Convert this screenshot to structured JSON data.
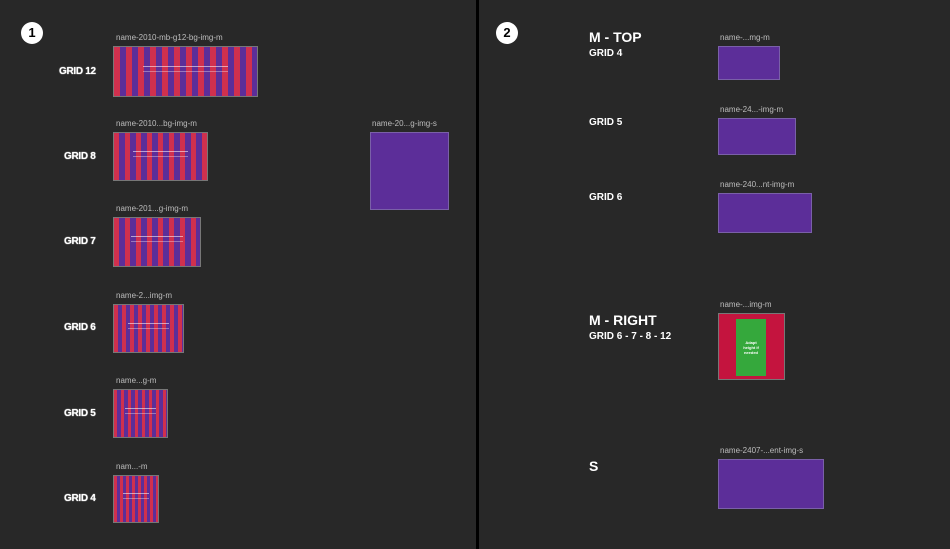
{
  "panels": [
    {
      "badge": "1",
      "groups": [
        {
          "label": "GRID 12",
          "frame": "name-2010-mb-g12-bg-img-m"
        },
        {
          "label": "GRID 8",
          "frame": "name-2010...bg-img-m"
        },
        {
          "label": "GRID 7",
          "frame": "name-201...g-img-m"
        },
        {
          "label": "GRID 6",
          "frame": "name-2...img-m"
        },
        {
          "label": "GRID 5",
          "frame": "name...g-m"
        },
        {
          "label": "GRID 4",
          "frame": "nam...-m"
        }
      ],
      "side_frame": "name-20...g-img-s"
    },
    {
      "badge": "2",
      "sections": [
        {
          "title": "M - TOP",
          "items": [
            {
              "label": "GRID 4",
              "frame": "name-...mg-m"
            },
            {
              "label": "GRID 5",
              "frame": "name-24...-img-m"
            },
            {
              "label": "GRID 6",
              "frame": "name-240...nt-img-m"
            }
          ]
        },
        {
          "title": "M - RIGHT",
          "subtitle": "GRID 6 - 7 - 8 - 12",
          "frame": "name-...img-m",
          "note": "Adapt height if needed"
        },
        {
          "title": "S",
          "frame": "name-2407-...ent-img-s"
        }
      ]
    }
  ]
}
